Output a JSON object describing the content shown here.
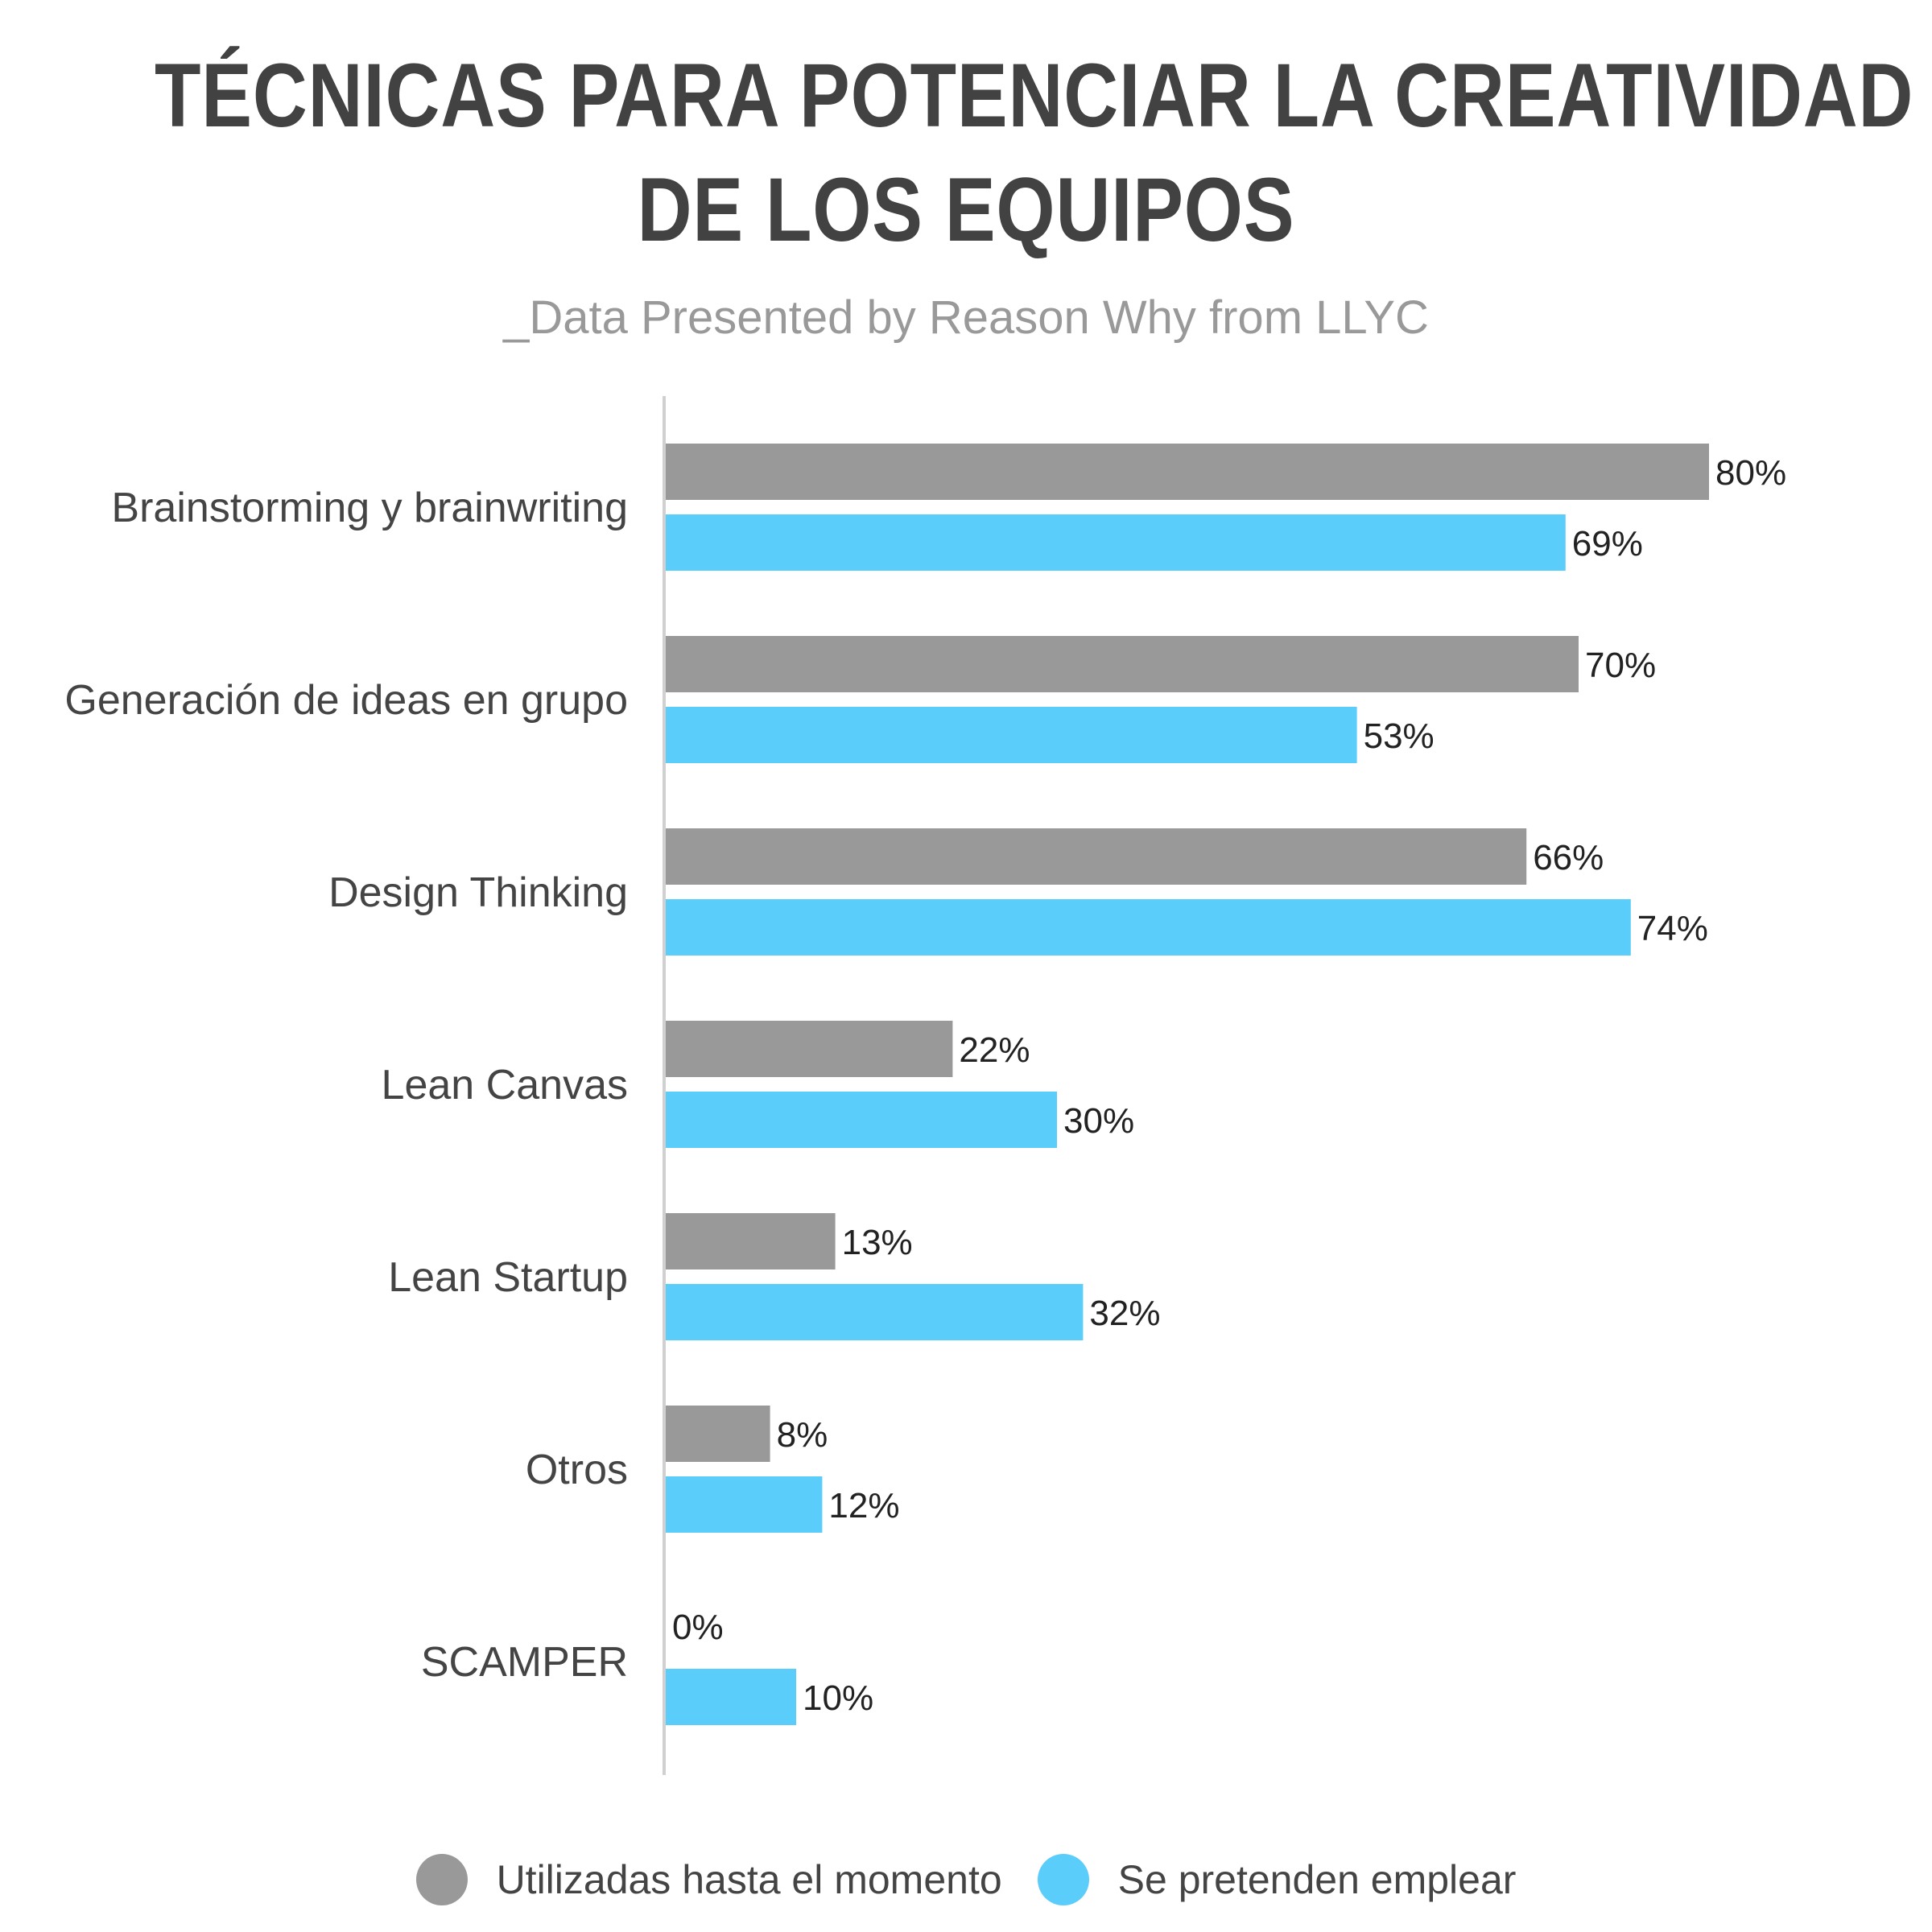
{
  "title_line1": "TÉCNICAS PARA POTENCIAR LA CREATIVIDAD",
  "title_line2": "DE LOS EQUIPOS",
  "subtitle": "_Data Presented by Reason Why from LLYC",
  "chart_data": {
    "type": "bar",
    "orientation": "horizontal",
    "categories": [
      "Brainstorming y brainwriting",
      "Generación de ideas en grupo",
      "Design Thinking",
      "Lean Canvas",
      "Lean Startup",
      "Otros",
      "SCAMPER"
    ],
    "series": [
      {
        "name": "Utilizadas hasta el momento",
        "color": "#999999",
        "values": [
          80,
          70,
          66,
          22,
          13,
          8,
          0
        ],
        "labels": [
          "80%",
          "70%",
          "66%",
          "22%",
          "13%",
          "8%",
          "0%"
        ]
      },
      {
        "name": "Se pretenden emplear",
        "color": "#5BCDFB",
        "values": [
          69,
          53,
          74,
          30,
          32,
          12,
          10
        ],
        "labels": [
          "69%",
          "53%",
          "74%",
          "30%",
          "32%",
          "12%",
          "10%"
        ]
      }
    ],
    "xlim": [
      0,
      100
    ],
    "grid": false,
    "legend_position": "bottom"
  }
}
